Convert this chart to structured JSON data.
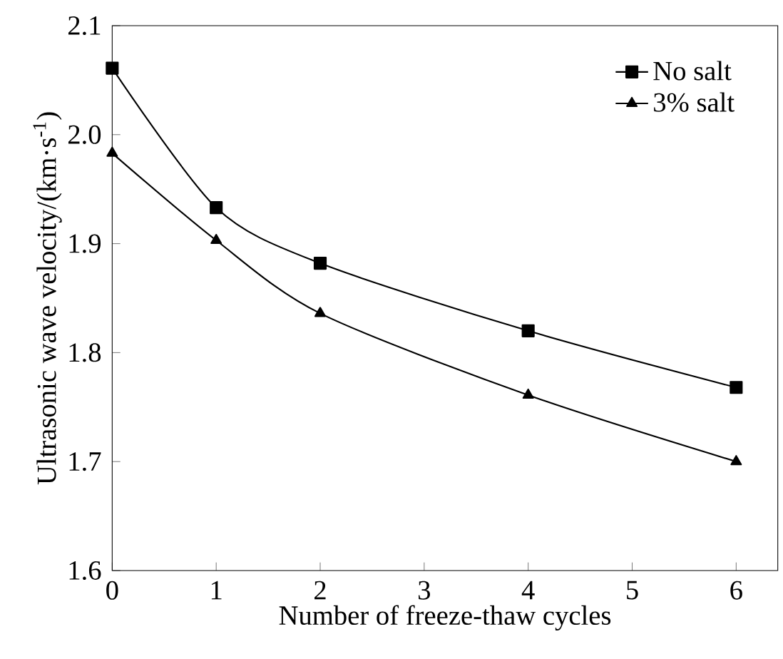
{
  "chart_data": {
    "type": "line",
    "xlabel": "Number of freeze-thaw cycles",
    "ylabel": "Ultrasonic wave velocity/(km·s$^{-1}$)",
    "x": [
      0,
      1,
      2,
      4,
      6
    ],
    "series": [
      {
        "name": "No salt",
        "color": "#000000",
        "marker": "square",
        "values": [
          2.061,
          1.933,
          1.882,
          1.82,
          1.768
        ]
      },
      {
        "name": "3% salt",
        "color": "#000000",
        "marker": "triangle",
        "values": [
          1.983,
          1.903,
          1.836,
          1.761,
          1.7
        ]
      }
    ],
    "xlim": [
      0,
      6.4
    ],
    "xticks": [
      0,
      1,
      2,
      3,
      4,
      5,
      6
    ],
    "ylim": [
      1.6,
      2.1
    ],
    "yticks": [
      1.6,
      1.7,
      1.8,
      1.9,
      {
        "value": 2.0,
        "label": "2.0"
      },
      2.1
    ],
    "legend": "top right",
    "grid": false,
    "line_style": "solid"
  }
}
